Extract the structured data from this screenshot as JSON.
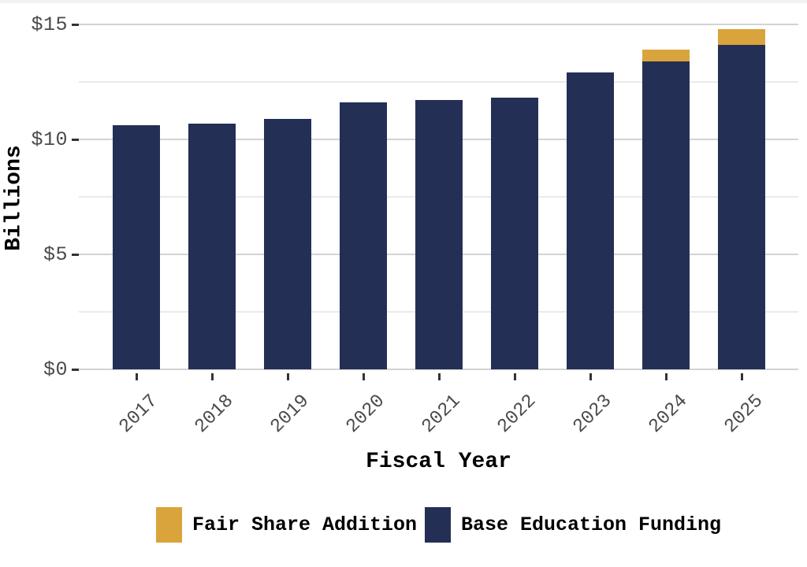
{
  "page": {
    "background_color": "#ffffff",
    "top_strip_color": "#f1f1f1"
  },
  "colors": {
    "navy": "#242F55",
    "gold": "#D9A43B",
    "major_gridline": "#d3d3d3",
    "minor_gridline": "#eaeaea",
    "tick_mark": "#333333",
    "tick_label": "#4a4a4a",
    "axis_title": "#000000"
  },
  "chart_data": {
    "type": "bar",
    "stacked": true,
    "title": "",
    "xlabel": "Fiscal Year",
    "ylabel": "Billions",
    "categories": [
      "2017",
      "2018",
      "2019",
      "2020",
      "2021",
      "2022",
      "2023",
      "2024",
      "2025"
    ],
    "series": [
      {
        "name": "Base Education Funding",
        "color": "#242F55",
        "values": [
          10.6,
          10.7,
          10.9,
          11.6,
          11.7,
          11.8,
          12.9,
          13.4,
          14.1
        ]
      },
      {
        "name": "Fair Share Addition",
        "color": "#D9A43B",
        "values": [
          0,
          0,
          0,
          0,
          0,
          0,
          0,
          0.5,
          0.7
        ]
      }
    ],
    "y_axis": {
      "ticks": [
        0,
        5,
        10,
        15
      ],
      "tick_labels": [
        "$0",
        "$5",
        "$10",
        "$15"
      ],
      "minor_ticks": [
        2.5,
        7.5,
        12.5
      ],
      "range": [
        0,
        15.4
      ],
      "grid": "horizontal, major and minor lines"
    },
    "x_axis": {
      "tick_label_rotation_deg": -45
    },
    "legend": {
      "position": "bottom-center",
      "items": [
        {
          "label": "Fair Share Addition",
          "color": "#D9A43B"
        },
        {
          "label": "Base Education Funding",
          "color": "#242F55"
        }
      ]
    }
  }
}
